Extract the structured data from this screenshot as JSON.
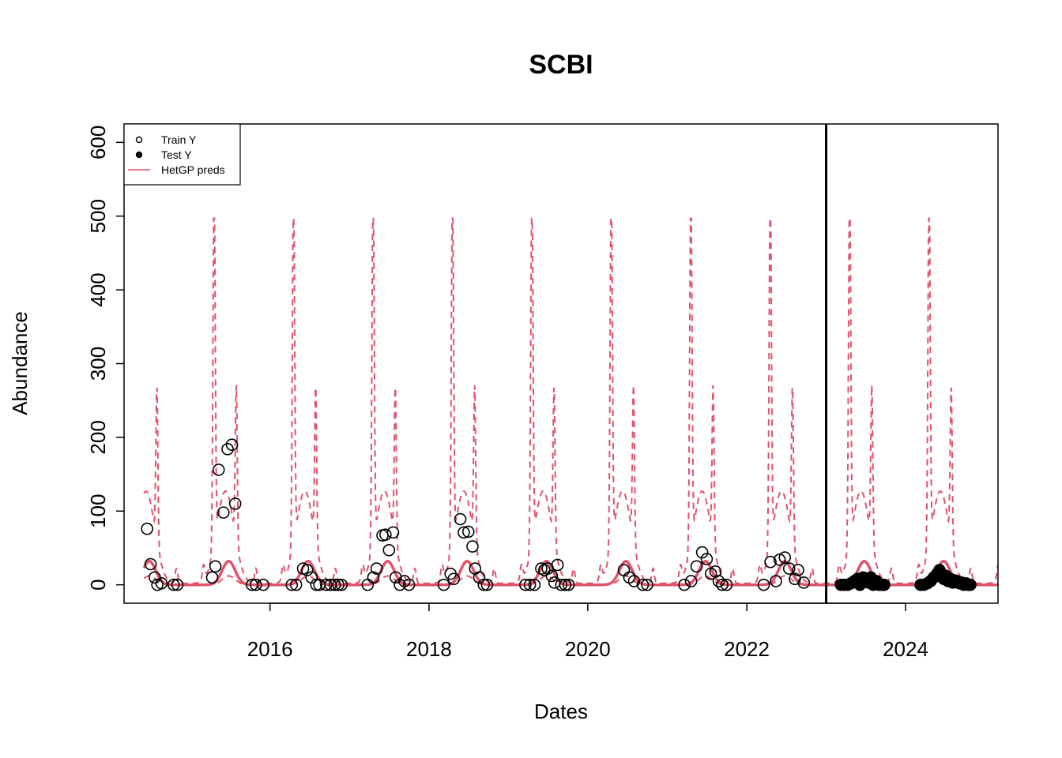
{
  "chart_data": {
    "type": "scatter",
    "title": "SCBI",
    "xlabel": "Dates",
    "ylabel": "Abundance",
    "xlim": [
      "2014-03-01",
      "2025-03-01"
    ],
    "ylim": [
      -25,
      625
    ],
    "x_ticks": [
      "2016",
      "2018",
      "2020",
      "2022",
      "2024"
    ],
    "y_ticks": [
      "0",
      "100",
      "200",
      "300",
      "400",
      "500",
      "600"
    ],
    "split_date": "2023-01-01",
    "legend": {
      "position": "top-left",
      "entries": [
        {
          "label": "Train Y",
          "symbol": "open-circle",
          "color": "#000000"
        },
        {
          "label": "Test Y",
          "symbol": "filled-circle",
          "color": "#000000"
        },
        {
          "label": "HetGP preds",
          "symbol": "line",
          "color": "#DF536B"
        }
      ]
    },
    "colors": {
      "pred": "#DF536B",
      "points": "#000000",
      "split_line": "#000000"
    },
    "series": [
      {
        "name": "Train Y",
        "style": "open-circle",
        "points": [
          [
            "2014-06-15",
            76
          ],
          [
            "2014-07-01",
            28
          ],
          [
            "2014-07-20",
            10
          ],
          [
            "2014-08-01",
            0
          ],
          [
            "2014-08-20",
            2
          ],
          [
            "2014-10-15",
            0
          ],
          [
            "2014-11-01",
            0
          ],
          [
            "2015-04-10",
            10
          ],
          [
            "2015-04-25",
            25
          ],
          [
            "2015-05-10",
            156
          ],
          [
            "2015-06-01",
            98
          ],
          [
            "2015-06-20",
            184
          ],
          [
            "2015-07-10",
            190
          ],
          [
            "2015-07-25",
            110
          ],
          [
            "2015-10-10",
            0
          ],
          [
            "2015-10-28",
            0
          ],
          [
            "2015-12-01",
            0
          ],
          [
            "2016-04-10",
            0
          ],
          [
            "2016-04-30",
            0
          ],
          [
            "2016-06-01",
            22
          ],
          [
            "2016-06-20",
            20
          ],
          [
            "2016-07-10",
            10
          ],
          [
            "2016-08-01",
            0
          ],
          [
            "2016-08-15",
            0
          ],
          [
            "2016-09-15",
            0
          ],
          [
            "2016-10-05",
            0
          ],
          [
            "2016-10-25",
            0
          ],
          [
            "2016-11-10",
            0
          ],
          [
            "2016-11-25",
            0
          ],
          [
            "2017-03-25",
            0
          ],
          [
            "2017-04-20",
            10
          ],
          [
            "2017-05-05",
            22
          ],
          [
            "2017-06-01",
            67
          ],
          [
            "2017-06-15",
            68
          ],
          [
            "2017-07-01",
            47
          ],
          [
            "2017-07-20",
            71
          ],
          [
            "2017-08-01",
            10
          ],
          [
            "2017-08-20",
            0
          ],
          [
            "2017-09-10",
            5
          ],
          [
            "2017-10-01",
            0
          ],
          [
            "2018-03-10",
            0
          ],
          [
            "2018-04-10",
            15
          ],
          [
            "2018-04-25",
            8
          ],
          [
            "2018-05-25",
            89
          ],
          [
            "2018-06-10",
            71
          ],
          [
            "2018-07-01",
            72
          ],
          [
            "2018-07-20",
            52
          ],
          [
            "2018-08-01",
            22
          ],
          [
            "2018-08-20",
            10
          ],
          [
            "2018-09-10",
            0
          ],
          [
            "2018-09-25",
            0
          ],
          [
            "2019-03-20",
            0
          ],
          [
            "2019-04-10",
            0
          ],
          [
            "2019-05-01",
            0
          ],
          [
            "2019-06-01",
            22
          ],
          [
            "2019-06-15",
            20
          ],
          [
            "2019-07-01",
            22
          ],
          [
            "2019-07-20",
            12
          ],
          [
            "2019-08-01",
            3
          ],
          [
            "2019-08-15",
            27
          ],
          [
            "2019-09-01",
            0
          ],
          [
            "2019-09-20",
            0
          ],
          [
            "2019-10-05",
            0
          ],
          [
            "2020-06-15",
            20
          ],
          [
            "2020-07-10",
            10
          ],
          [
            "2020-08-01",
            5
          ],
          [
            "2020-09-10",
            0
          ],
          [
            "2020-09-30",
            0
          ],
          [
            "2021-03-20",
            0
          ],
          [
            "2021-04-20",
            5
          ],
          [
            "2021-05-15",
            25
          ],
          [
            "2021-06-10",
            44
          ],
          [
            "2021-07-01",
            35
          ],
          [
            "2021-07-20",
            15
          ],
          [
            "2021-08-10",
            18
          ],
          [
            "2021-08-25",
            5
          ],
          [
            "2021-09-10",
            0
          ],
          [
            "2021-09-30",
            0
          ],
          [
            "2022-03-20",
            0
          ],
          [
            "2022-04-20",
            31
          ],
          [
            "2022-05-15",
            5
          ],
          [
            "2022-06-01",
            34
          ],
          [
            "2022-06-25",
            37
          ],
          [
            "2022-07-15",
            22
          ],
          [
            "2022-08-10",
            8
          ],
          [
            "2022-08-25",
            20
          ],
          [
            "2022-09-20",
            3
          ]
        ]
      },
      {
        "name": "Test Y",
        "style": "filled-circle",
        "points": [
          [
            "2023-03-10",
            0
          ],
          [
            "2023-03-25",
            0
          ],
          [
            "2023-04-10",
            0
          ],
          [
            "2023-04-25",
            2
          ],
          [
            "2023-05-10",
            5
          ],
          [
            "2023-05-25",
            8
          ],
          [
            "2023-06-05",
            0
          ],
          [
            "2023-06-20",
            10
          ],
          [
            "2023-07-01",
            5
          ],
          [
            "2023-07-15",
            3
          ],
          [
            "2023-07-25",
            10
          ],
          [
            "2023-08-05",
            0
          ],
          [
            "2023-08-20",
            5
          ],
          [
            "2023-09-01",
            0
          ],
          [
            "2023-09-15",
            0
          ],
          [
            "2023-09-25",
            0
          ],
          [
            "2024-03-10",
            0
          ],
          [
            "2024-03-25",
            0
          ],
          [
            "2024-04-10",
            2
          ],
          [
            "2024-04-25",
            5
          ],
          [
            "2024-05-10",
            10
          ],
          [
            "2024-05-25",
            15
          ],
          [
            "2024-06-05",
            20
          ],
          [
            "2024-06-15",
            15
          ],
          [
            "2024-06-25",
            8
          ],
          [
            "2024-07-05",
            12
          ],
          [
            "2024-07-15",
            5
          ],
          [
            "2024-07-25",
            8
          ],
          [
            "2024-08-05",
            3
          ],
          [
            "2024-08-15",
            6
          ],
          [
            "2024-08-25",
            5
          ],
          [
            "2024-09-05",
            2
          ],
          [
            "2024-09-15",
            3
          ],
          [
            "2024-09-25",
            0
          ],
          [
            "2024-10-05",
            2
          ],
          [
            "2024-10-15",
            0
          ],
          [
            "2024-10-25",
            0
          ]
        ]
      },
      {
        "name": "HetGP preds",
        "style": "line",
        "start": "2014-06-01",
        "end": "2025-03-01",
        "peak_day": 175,
        "peak_value": 32,
        "peak_width_days": 30,
        "baseline": 0
      },
      {
        "style": "dashed-band",
        "start": "2014-06-01",
        "end": "2025-03-01",
        "spike1_day": 108,
        "spike1_value": 497,
        "spike2_day": 210,
        "spike2_value": 341,
        "trough_day": 160,
        "trough_value": 125,
        "off_season_bump": 20
      }
    ]
  }
}
